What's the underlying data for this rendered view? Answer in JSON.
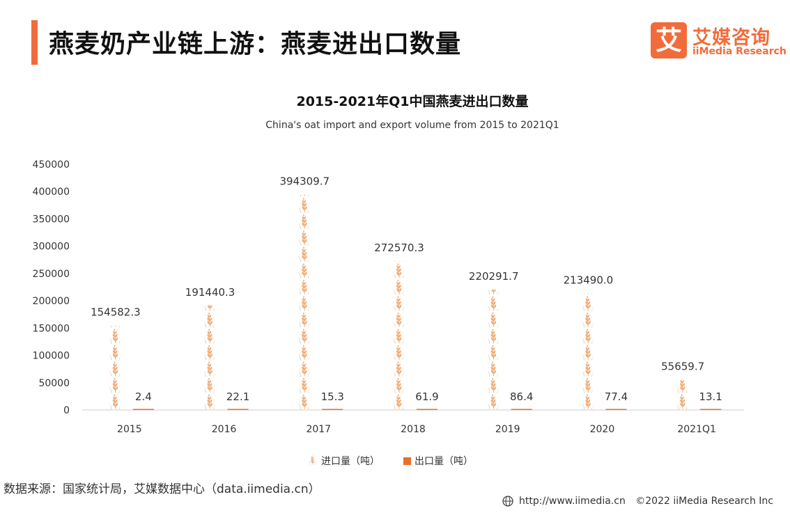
{
  "header": {
    "title": "燕麦奶产业链上游：燕麦进出口数量"
  },
  "logo": {
    "mark": "艾",
    "name_cn": "艾媒咨询",
    "name_en": "iiMedia Research"
  },
  "colors": {
    "accent": "#f26b3a",
    "import_wheat": "#f0b07c",
    "export_bar": "#e8702a",
    "axis": "#cccccc",
    "text": "#333333"
  },
  "chart_data": {
    "type": "bar",
    "title": "2015-2021年Q1中国燕麦进出口数量",
    "subtitle": "China's oat import and export volume from 2015 to 2021Q1",
    "categories": [
      "2015",
      "2016",
      "2017",
      "2018",
      "2019",
      "2020",
      "2021Q1"
    ],
    "series": [
      {
        "name": "进口量（吨）",
        "values": [
          154582.3,
          191440.3,
          394309.7,
          272570.3,
          220291.7,
          213490.0,
          55659.7
        ],
        "labels": [
          "154582.3",
          "191440.3",
          "394309.7",
          "272570.3",
          "220291.7",
          "213490.0",
          "55659.7"
        ],
        "mark": "wheat-icon"
      },
      {
        "name": "出口量（吨）",
        "values": [
          2.4,
          22.1,
          15.3,
          61.9,
          86.4,
          77.4,
          13.1
        ],
        "labels": [
          "2.4",
          "22.1",
          "15.3",
          "61.9",
          "86.4",
          "77.4",
          "13.1"
        ],
        "mark": "bar"
      }
    ],
    "y_ticks": [
      "0",
      "50000",
      "100000",
      "150000",
      "200000",
      "250000",
      "300000",
      "350000",
      "400000",
      "450000"
    ],
    "ylim": [
      0,
      450000
    ],
    "grid": false,
    "legend": "bottom-center"
  },
  "source": "数据来源：国家统计局，艾媒数据中心（data.iimedia.cn）",
  "footer": {
    "url": "http://www.iimedia.cn",
    "copyright": "©2022  iiMedia Research  Inc"
  }
}
